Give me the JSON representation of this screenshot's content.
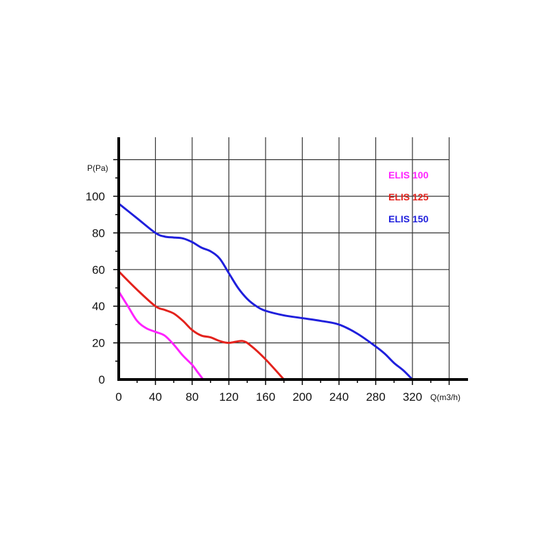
{
  "chart_data": {
    "type": "line",
    "title": "",
    "xlabel": "Q(m3/h)",
    "ylabel": "P(Pa)",
    "xlim": [
      0,
      360
    ],
    "ylim": [
      0,
      120
    ],
    "x_ticks": [
      0,
      40,
      80,
      120,
      160,
      200,
      240,
      280,
      320
    ],
    "y_ticks": [
      0,
      20,
      40,
      60,
      80,
      100
    ],
    "grid": true,
    "legend_position": "top-right",
    "series": [
      {
        "name": "ELIS 100",
        "color": "#ff22ff",
        "points": [
          [
            0,
            48
          ],
          [
            10,
            40
          ],
          [
            20,
            32
          ],
          [
            30,
            28
          ],
          [
            40,
            26
          ],
          [
            50,
            24
          ],
          [
            60,
            19
          ],
          [
            70,
            13
          ],
          [
            80,
            8
          ],
          [
            86,
            4
          ],
          [
            92,
            0
          ]
        ]
      },
      {
        "name": "ELIS 125",
        "color": "#e3221c",
        "points": [
          [
            0,
            59
          ],
          [
            20,
            49
          ],
          [
            40,
            40
          ],
          [
            50,
            38
          ],
          [
            60,
            36
          ],
          [
            70,
            32
          ],
          [
            80,
            27
          ],
          [
            90,
            24
          ],
          [
            100,
            23
          ],
          [
            110,
            21
          ],
          [
            120,
            20
          ],
          [
            135,
            21
          ],
          [
            145,
            18
          ],
          [
            160,
            11
          ],
          [
            180,
            0
          ]
        ]
      },
      {
        "name": "ELIS 150",
        "color": "#1f1fdc",
        "points": [
          [
            0,
            96
          ],
          [
            20,
            88
          ],
          [
            40,
            80
          ],
          [
            50,
            78
          ],
          [
            60,
            77.5
          ],
          [
            70,
            77
          ],
          [
            80,
            75
          ],
          [
            90,
            72
          ],
          [
            100,
            70
          ],
          [
            110,
            66
          ],
          [
            120,
            58
          ],
          [
            130,
            50
          ],
          [
            140,
            44
          ],
          [
            150,
            40
          ],
          [
            160,
            37.5
          ],
          [
            180,
            35
          ],
          [
            200,
            33.5
          ],
          [
            220,
            32
          ],
          [
            240,
            30
          ],
          [
            260,
            25
          ],
          [
            280,
            18
          ],
          [
            290,
            14
          ],
          [
            300,
            9
          ],
          [
            310,
            5
          ],
          [
            320,
            0
          ]
        ]
      }
    ]
  }
}
